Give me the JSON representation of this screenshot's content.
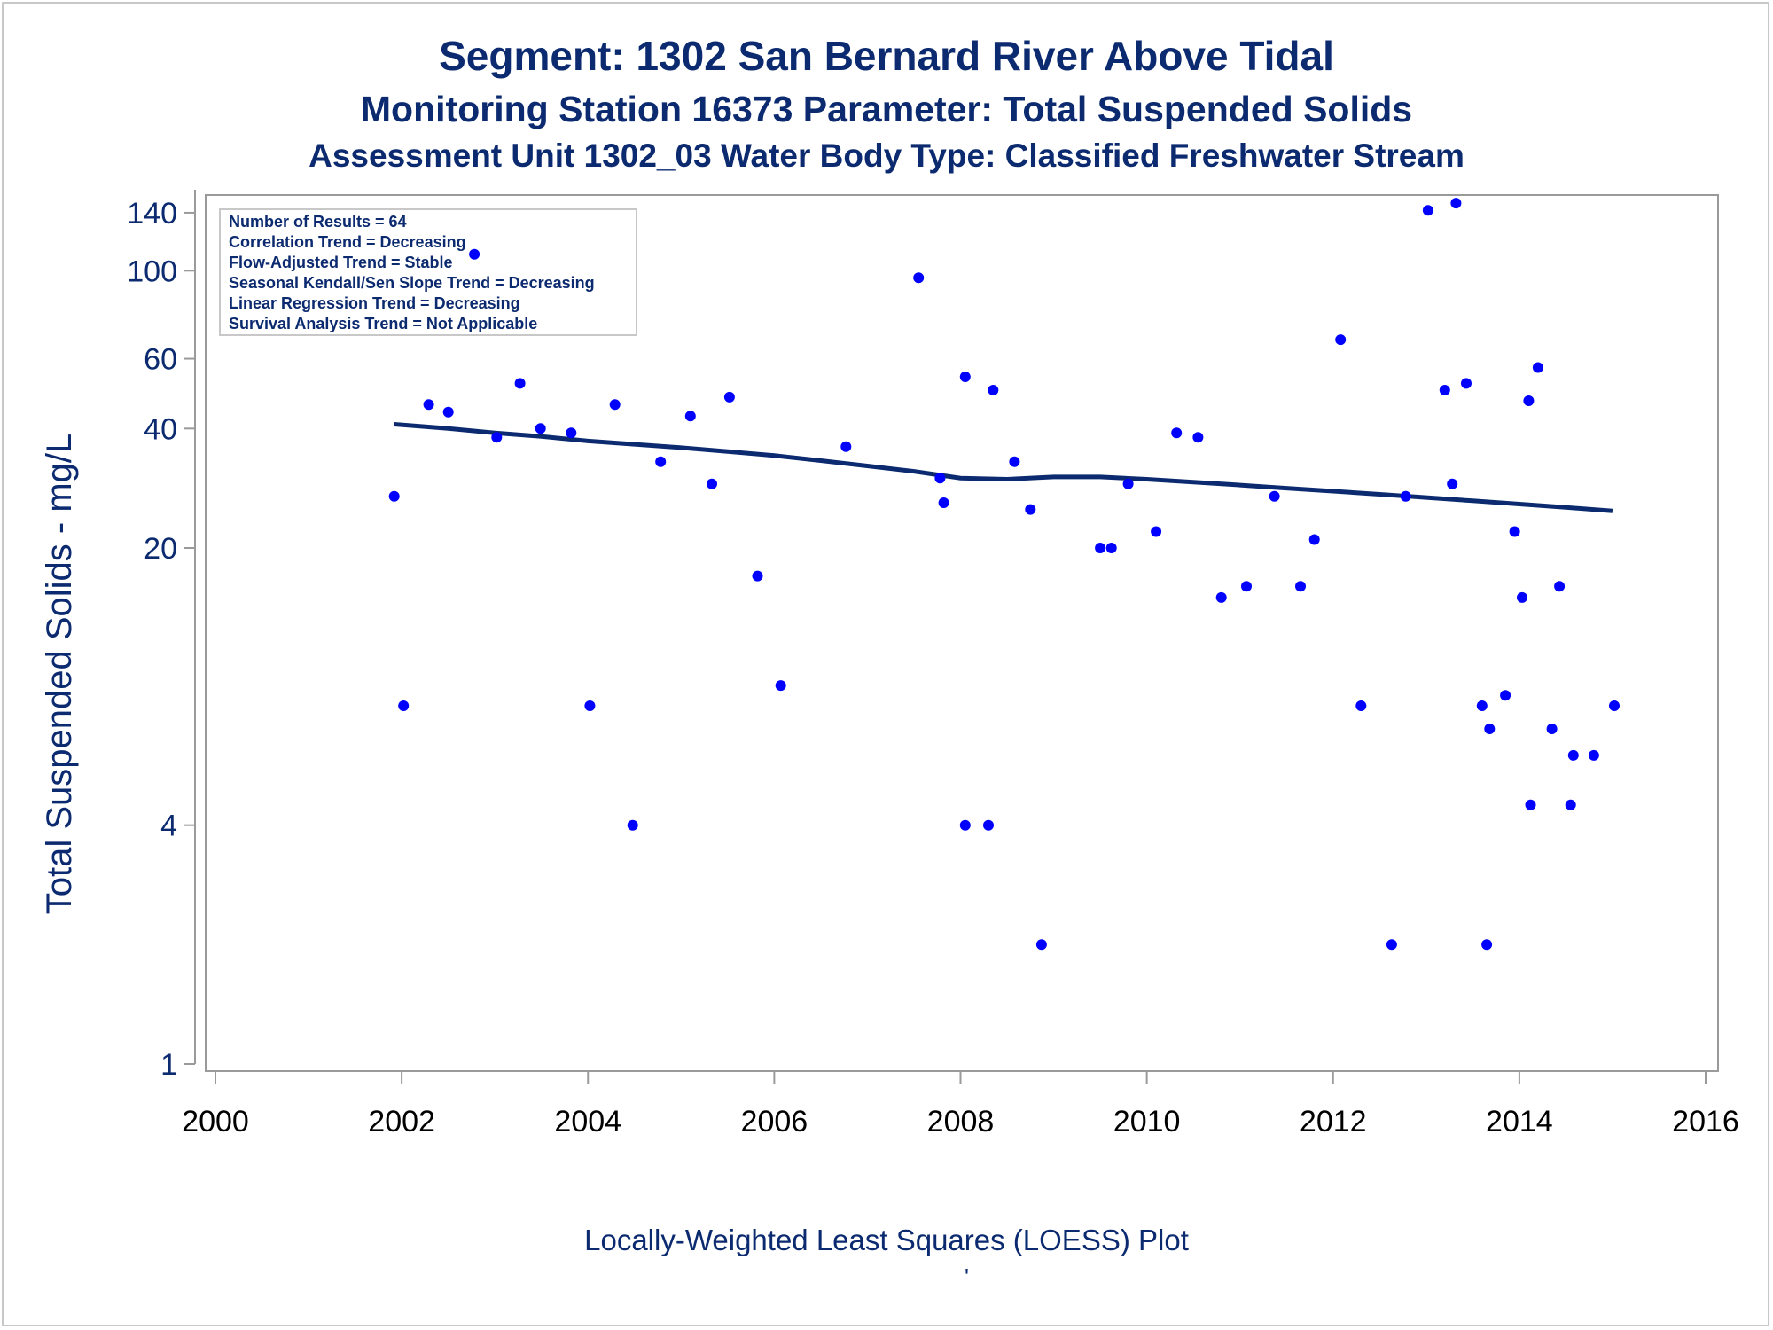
{
  "titles": {
    "line1": "Segment: 1302  San Bernard River Above Tidal",
    "line2": "Monitoring Station 16373 Parameter: Total Suspended Solids",
    "line3": "Assessment Unit 1302_03   Water Body Type: Classified Freshwater Stream"
  },
  "footer": {
    "text": "Locally-Weighted Least Squares (LOESS) Plot",
    "mark": "'"
  },
  "inset": {
    "lines": [
      "Number of Results = 64",
      "Correlation Trend = Decreasing",
      "Flow-Adjusted Trend = Stable",
      "Seasonal Kendall/Sen Slope Trend = Decreasing",
      "Linear Regression Trend = Decreasing",
      "Survival Analysis Trend = Not Applicable"
    ]
  },
  "colors": {
    "points": "#0000ff",
    "loess": "#0b2a6f",
    "text": "#0b2a6f",
    "axis": "#9a9a9a"
  },
  "chart_data": {
    "type": "scatter",
    "title": "Segment: 1302  San Bernard River Above Tidal",
    "xlabel": "",
    "ylabel": "Total Suspended Solids - mg/L",
    "xlim": [
      2000,
      2016
    ],
    "x_ticks": [
      2000,
      2002,
      2004,
      2006,
      2008,
      2010,
      2012,
      2014,
      2016
    ],
    "y_scale": "log",
    "ylim": [
      1,
      160
    ],
    "y_ticks": [
      1,
      4,
      20,
      40,
      60,
      100,
      140
    ],
    "grid": false,
    "series": [
      {
        "kind": "points",
        "points": [
          [
            2001.92,
            27
          ],
          [
            2002.02,
            8
          ],
          [
            2002.29,
            46
          ],
          [
            2002.5,
            44
          ],
          [
            2002.78,
            110
          ],
          [
            2003.02,
            38
          ],
          [
            2003.27,
            52
          ],
          [
            2003.49,
            40
          ],
          [
            2003.82,
            39
          ],
          [
            2004.02,
            8
          ],
          [
            2004.29,
            46
          ],
          [
            2004.48,
            4
          ],
          [
            2004.78,
            33
          ],
          [
            2005.1,
            43
          ],
          [
            2005.33,
            29
          ],
          [
            2005.52,
            48
          ],
          [
            2005.82,
            17
          ],
          [
            2006.07,
            9
          ],
          [
            2006.77,
            36
          ],
          [
            2007.55,
            96
          ],
          [
            2007.78,
            30
          ],
          [
            2007.82,
            26
          ],
          [
            2008.05,
            54
          ],
          [
            2008.05,
            4
          ],
          [
            2008.3,
            4
          ],
          [
            2008.35,
            50
          ],
          [
            2008.58,
            33
          ],
          [
            2008.75,
            25
          ],
          [
            2008.87,
            2
          ],
          [
            2009.5,
            20
          ],
          [
            2009.62,
            20
          ],
          [
            2009.8,
            29
          ],
          [
            2010.1,
            22
          ],
          [
            2010.32,
            39
          ],
          [
            2010.55,
            38
          ],
          [
            2010.8,
            15
          ],
          [
            2011.07,
            16
          ],
          [
            2011.37,
            27
          ],
          [
            2011.65,
            16
          ],
          [
            2011.8,
            21
          ],
          [
            2012.08,
            67
          ],
          [
            2012.3,
            8
          ],
          [
            2012.63,
            2
          ],
          [
            2012.78,
            27
          ],
          [
            2013.02,
            142
          ],
          [
            2013.2,
            50
          ],
          [
            2013.28,
            29
          ],
          [
            2013.32,
            148
          ],
          [
            2013.43,
            52
          ],
          [
            2013.6,
            8
          ],
          [
            2013.65,
            2
          ],
          [
            2013.68,
            7
          ],
          [
            2013.85,
            8.5
          ],
          [
            2013.95,
            22
          ],
          [
            2014.03,
            15
          ],
          [
            2014.12,
            4.5
          ],
          [
            2014.1,
            47
          ],
          [
            2014.2,
            57
          ],
          [
            2014.35,
            7
          ],
          [
            2014.43,
            16
          ],
          [
            2014.55,
            4.5
          ],
          [
            2014.58,
            6
          ],
          [
            2014.8,
            6
          ],
          [
            2015.02,
            8
          ]
        ]
      },
      {
        "kind": "loess",
        "points": [
          [
            2001.92,
            41
          ],
          [
            2002.5,
            40
          ],
          [
            2003.0,
            39
          ],
          [
            2003.5,
            38.2
          ],
          [
            2004.0,
            37.2
          ],
          [
            2004.5,
            36.5
          ],
          [
            2005.0,
            35.8
          ],
          [
            2005.5,
            35
          ],
          [
            2006.0,
            34.2
          ],
          [
            2006.5,
            33.2
          ],
          [
            2007.0,
            32.2
          ],
          [
            2007.5,
            31.2
          ],
          [
            2008.0,
            30
          ],
          [
            2008.5,
            29.8
          ],
          [
            2009.0,
            30.2
          ],
          [
            2009.5,
            30.2
          ],
          [
            2010.0,
            29.8
          ],
          [
            2010.5,
            29.3
          ],
          [
            2011.0,
            28.8
          ],
          [
            2011.5,
            28.3
          ],
          [
            2012.0,
            27.8
          ],
          [
            2012.5,
            27.3
          ],
          [
            2013.0,
            26.8
          ],
          [
            2013.5,
            26.3
          ],
          [
            2014.0,
            25.8
          ],
          [
            2014.5,
            25.3
          ],
          [
            2015.0,
            24.8
          ]
        ]
      }
    ]
  }
}
